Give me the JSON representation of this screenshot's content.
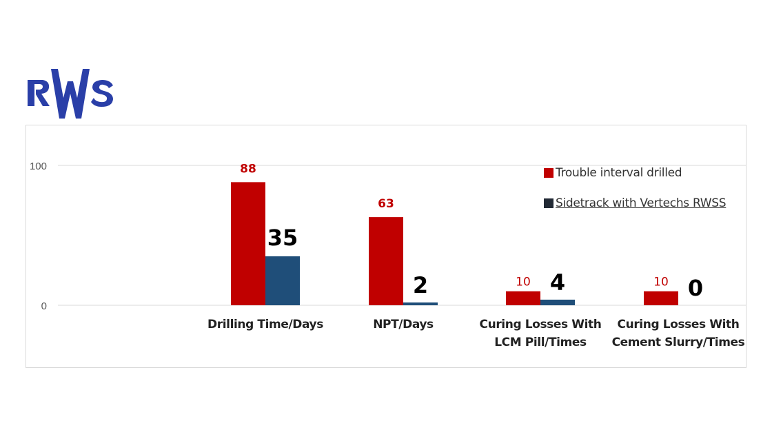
{
  "logo": {
    "text": "RWS",
    "color": "#2a3fa8"
  },
  "chart_data": {
    "type": "bar",
    "categories": [
      [
        "Drilling Time/Days"
      ],
      [
        "NPT/Days"
      ],
      [
        "Curing Losses With",
        "LCM Pill/Times"
      ],
      [
        "Curing Losses With",
        "Cement Slurry/Times"
      ]
    ],
    "series": [
      {
        "name": "Trouble interval drilled",
        "values": [
          88,
          63,
          10,
          10
        ],
        "color": "#c00000",
        "label_color": "#c00000"
      },
      {
        "name": "Sidetrack with Vertechs RWSS",
        "values": [
          35,
          2,
          4,
          0
        ],
        "color": "#1f4e79",
        "label_color": "#000000"
      }
    ],
    "ylim": [
      0,
      100
    ],
    "yticks": [
      0,
      100
    ],
    "grid": true,
    "legend_position": "top-right",
    "colors": {
      "series1": "#c00000",
      "series2": "#1f4e79",
      "legend_swatch2": "#222a35"
    }
  },
  "legend": {
    "items": [
      {
        "label": "Trouble interval drilled",
        "color": "#c00000",
        "underline": false
      },
      {
        "label": "Sidetrack with Vertechs RWSS",
        "color": "#222a35",
        "underline": true
      }
    ]
  }
}
